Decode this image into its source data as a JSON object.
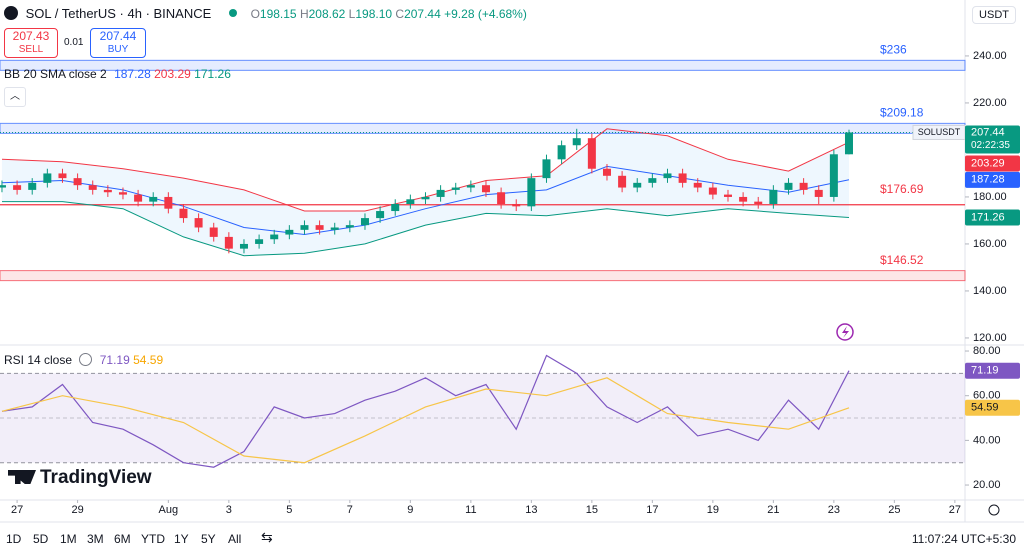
{
  "header": {
    "symbol": "SOL / TetherUS · 4h · BINANCE",
    "ohlc": [
      {
        "key": "O",
        "value": "198.15"
      },
      {
        "key": "H",
        "value": "208.62"
      },
      {
        "key": "L",
        "value": "198.10"
      },
      {
        "key": "C",
        "value": "207.44"
      }
    ],
    "change": "+9.28 (+4.68%)",
    "currency": "USDT"
  },
  "trade": {
    "sell_price": "207.43",
    "sell": "SELL",
    "spread": "0.01",
    "buy_price": "207.44",
    "buy": "BUY"
  },
  "brand": "TradingView",
  "ranges": [
    "1D",
    "5D",
    "1M",
    "3M",
    "6M",
    "YTD",
    "1Y",
    "5Y",
    "All"
  ],
  "clock": "11:07:24 UTC+5:30",
  "chart_data": {
    "type": "candlestick",
    "symbol": "SOLUSDT",
    "countdown": "02:22:35",
    "xlim": [
      -0.13,
      63.67
    ],
    "xticks": [
      {
        "value": 1,
        "label": "27"
      },
      {
        "value": 5,
        "label": "29"
      },
      {
        "value": 11,
        "label": "Aug"
      },
      {
        "value": 15,
        "label": "3"
      },
      {
        "value": 19,
        "label": "5"
      },
      {
        "value": 23,
        "label": "7"
      },
      {
        "value": 27,
        "label": "9"
      },
      {
        "value": 31,
        "label": "11"
      },
      {
        "value": 35,
        "label": "13"
      },
      {
        "value": 39,
        "label": "15"
      },
      {
        "value": 43,
        "label": "17"
      },
      {
        "value": 47,
        "label": "19"
      },
      {
        "value": 51,
        "label": "21"
      },
      {
        "value": 55,
        "label": "23"
      },
      {
        "value": 59,
        "label": "25"
      },
      {
        "value": 63,
        "label": "27"
      }
    ],
    "ylim": [
      117,
      263.8
    ],
    "yticks": [
      {
        "value": 120,
        "label": "120.00"
      },
      {
        "value": 140,
        "label": "140.00"
      },
      {
        "value": 160,
        "label": "160.00"
      },
      {
        "value": 180,
        "label": "180.00"
      },
      {
        "value": 220,
        "label": "220.00"
      },
      {
        "value": 240,
        "label": "240.00"
      }
    ],
    "up_color": "#089981",
    "down_color": "#f23645",
    "open": [
      184,
      185,
      183,
      186,
      190,
      188,
      185,
      183,
      182,
      181,
      178,
      180,
      175,
      171,
      167,
      163,
      158,
      160,
      162,
      164,
      166,
      168,
      166,
      167,
      168,
      171,
      174,
      177,
      179,
      180,
      183,
      184,
      185,
      182,
      177,
      176,
      188,
      196,
      202,
      205,
      192,
      189,
      184,
      186,
      188,
      190,
      186,
      184,
      181,
      180,
      178,
      177,
      183,
      186,
      183,
      180,
      198.15
    ],
    "high": [
      187,
      187,
      188,
      192,
      192,
      190,
      187,
      185,
      184,
      183,
      182,
      182,
      177,
      173,
      169,
      165,
      162,
      164,
      166,
      168,
      170,
      170,
      169,
      170,
      173,
      176,
      179,
      181,
      182,
      185,
      186,
      187,
      187,
      184,
      179,
      190,
      198,
      204,
      209,
      207,
      194,
      191,
      188,
      190,
      192,
      192,
      188,
      186,
      183,
      182,
      180,
      185,
      188,
      188,
      185,
      200,
      208.62
    ],
    "low": [
      182,
      181,
      181,
      184,
      186,
      183,
      181,
      180,
      179,
      176,
      176,
      173,
      169,
      165,
      161,
      156,
      156,
      158,
      160,
      162,
      164,
      164,
      164,
      165,
      166,
      169,
      172,
      175,
      177,
      178,
      181,
      182,
      180,
      175,
      174,
      174,
      186,
      194,
      200,
      190,
      187,
      182,
      182,
      184,
      186,
      184,
      182,
      179,
      178,
      176,
      175,
      175,
      181,
      181,
      177,
      178,
      198.1
    ],
    "close": [
      185,
      183,
      186,
      190,
      188,
      185,
      183,
      182,
      181,
      178,
      180,
      175,
      171,
      167,
      163,
      158,
      160,
      162,
      164,
      166,
      168,
      166,
      167,
      168,
      171,
      174,
      177,
      179,
      180,
      183,
      184,
      185,
      182,
      177,
      176,
      188,
      196,
      202,
      205,
      192,
      189,
      184,
      186,
      188,
      190,
      186,
      184,
      181,
      180,
      178,
      177,
      183,
      186,
      183,
      180,
      198.15,
      207.44
    ],
    "levels": [
      {
        "value": 236,
        "label": "$236",
        "color": "#2962ff"
      },
      {
        "value": 209.18,
        "label": "$209.18",
        "color": "#2962ff"
      },
      {
        "value": 176.69,
        "label": "$176.69",
        "color": "#f23645"
      },
      {
        "value": 146.52,
        "label": "$146.52",
        "color": "#f23645"
      }
    ],
    "bb": {
      "name": "BB 20 SMA close 2",
      "x": [
        0,
        4,
        8,
        12,
        16,
        20,
        24,
        28,
        32,
        36,
        40,
        44,
        48,
        52,
        56
      ],
      "basis": [
        186,
        187,
        183,
        176,
        167,
        164,
        168,
        175,
        181,
        183,
        193,
        189,
        185,
        182,
        187.28
      ],
      "upper": [
        196,
        195,
        192,
        188,
        183,
        174,
        174,
        180,
        187,
        189,
        209,
        206,
        196,
        191,
        203.29
      ],
      "lower": [
        178,
        178,
        175,
        163,
        155,
        156,
        160,
        168,
        173,
        172,
        175,
        172,
        175,
        173,
        171.26
      ],
      "basis_color": "#2962ff",
      "upper_color": "#f23645",
      "lower_color": "#089981"
    },
    "rsi": {
      "name": "RSI 14 close",
      "ylim": [
        13.3,
        82.7
      ],
      "yticks": [
        {
          "value": 20,
          "label": "20.00"
        },
        {
          "value": 40,
          "label": "40.00"
        },
        {
          "value": 60,
          "label": "60.00"
        },
        {
          "value": 80,
          "label": "80.00"
        }
      ],
      "bands": [
        30,
        50,
        70
      ],
      "x": [
        0,
        2,
        4,
        6,
        8,
        10,
        12,
        14,
        16,
        18,
        20,
        22,
        24,
        26,
        28,
        30,
        32,
        34,
        36,
        38,
        40,
        42,
        44,
        46,
        48,
        50,
        52,
        54,
        56
      ],
      "values": [
        53,
        55,
        65,
        48,
        45,
        38,
        30,
        28,
        35,
        55,
        50,
        52,
        58,
        62,
        68,
        60,
        65,
        45,
        78,
        70,
        55,
        48,
        55,
        42,
        45,
        40,
        58,
        45,
        71.19
      ],
      "color": "#7e57c2",
      "ma_x": [
        0,
        4,
        8,
        12,
        16,
        20,
        24,
        28,
        32,
        36,
        40,
        44,
        48,
        52,
        56
      ],
      "ma": [
        53,
        60,
        55,
        48,
        33,
        30,
        42,
        55,
        63,
        60,
        68,
        52,
        48,
        45,
        54.59
      ],
      "ma_color": "#f7c548"
    }
  }
}
